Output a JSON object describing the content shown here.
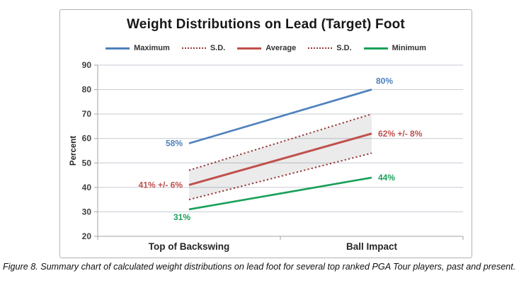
{
  "figure": {
    "caption": "Figure 8. Summary chart of calculated weight distributions on lead foot for several top ranked PGA Tour players, past and present."
  },
  "colors": {
    "maximum_blue": "#4f81bd",
    "average_red": "#c0504d",
    "sd_maroon": "#953735",
    "minimum_green": "#1aa05a",
    "band_fill": "rgba(0,0,0,0.08)",
    "gridline": "#c6cbd3",
    "axis": "#a3a3a3",
    "tick_label": "#3f3f3f"
  },
  "chart_data": {
    "type": "line",
    "title": "Weight Distributions on Lead (Target) Foot",
    "xlabel": "",
    "ylabel": "Percent",
    "categories": [
      "Top of Backswing",
      "Ball Impact"
    ],
    "ylim": [
      20,
      90
    ],
    "yticks": [
      20,
      30,
      40,
      50,
      60,
      70,
      80,
      90
    ],
    "grid": true,
    "legend_position": "top",
    "legend": [
      {
        "label": "Maximum",
        "color": "#4f81bd",
        "style": "solid"
      },
      {
        "label": "S.D.",
        "color": "#953735",
        "style": "dotted"
      },
      {
        "label": "Average",
        "color": "#c0504d",
        "style": "solid"
      },
      {
        "label": "S.D.",
        "color": "#953735",
        "style": "dotted"
      },
      {
        "label": "Minimum",
        "color": "#1aa05a",
        "style": "solid"
      }
    ],
    "series": [
      {
        "name": "Maximum",
        "values": [
          58,
          80
        ],
        "color": "#4f81bd",
        "style": "solid",
        "point_labels": [
          "58%",
          "80%"
        ],
        "label_placements": [
          "left",
          "above"
        ]
      },
      {
        "name": "S.D. (upper)",
        "values": [
          47,
          70
        ],
        "color": "#953735",
        "style": "dotted",
        "point_labels": [
          "",
          ""
        ],
        "label_placements": [
          "left",
          "right"
        ]
      },
      {
        "name": "Average",
        "values": [
          41,
          62
        ],
        "color": "#c0504d",
        "style": "solid",
        "point_labels": [
          "41% +/- 6%",
          "62% +/- 8%"
        ],
        "label_placements": [
          "left",
          "right"
        ]
      },
      {
        "name": "S.D. (lower)",
        "values": [
          35,
          54
        ],
        "color": "#953735",
        "style": "dotted",
        "point_labels": [
          "",
          ""
        ],
        "label_placements": [
          "left",
          "right"
        ]
      },
      {
        "name": "Minimum",
        "values": [
          31,
          44
        ],
        "color": "#1aa05a",
        "style": "solid",
        "point_labels": [
          "31%",
          "44%"
        ],
        "label_placements": [
          "below",
          "right"
        ]
      }
    ],
    "band": {
      "upper_series": "S.D. (upper)",
      "lower_series": "S.D. (lower)",
      "fill": "rgba(0,0,0,0.08)"
    }
  }
}
